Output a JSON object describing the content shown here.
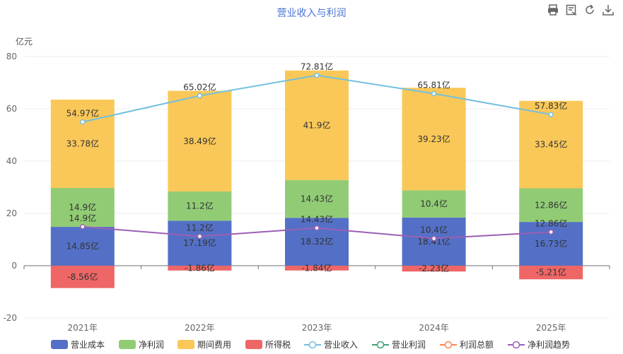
{
  "toolbox": {
    "icons": [
      "print-icon",
      "data-view-icon",
      "restore-icon",
      "download-icon"
    ]
  },
  "chart_data": {
    "type": "bar",
    "title": "营业收入与利润",
    "ylabel": "亿元",
    "ylim": [
      -20,
      80
    ],
    "yticks": [
      -20,
      0,
      20,
      40,
      60,
      80
    ],
    "categories": [
      "2021年",
      "2022年",
      "2023年",
      "2024年",
      "2025年"
    ],
    "stacked_series": [
      {
        "name": "营业成本",
        "color": "#5470c6",
        "values": [
          14.85,
          17.19,
          18.32,
          18.41,
          16.73
        ],
        "labels": [
          "14.85亿",
          "17.19亿",
          "18.32亿",
          "18.41亿",
          "16.73亿"
        ]
      },
      {
        "name": "净利润",
        "color": "#91cc75",
        "values": [
          14.9,
          11.2,
          14.43,
          10.4,
          12.86
        ],
        "labels": [
          "14.9亿",
          "11.2亿",
          "14.43亿",
          "10.4亿",
          "12.86亿"
        ]
      },
      {
        "name": "期间费用",
        "color": "#fac858",
        "values": [
          33.78,
          38.49,
          41.9,
          39.23,
          33.45
        ],
        "labels": [
          "33.78亿",
          "38.49亿",
          "41.9亿",
          "39.23亿",
          "33.45亿"
        ]
      },
      {
        "name": "所得税",
        "color": "#ee6666",
        "values": [
          -8.56,
          -1.86,
          -1.84,
          -2.23,
          -5.21
        ],
        "labels": [
          "-8.56亿",
          "-1.86亿",
          "-1.84亿",
          "-2.23亿",
          "-5.21亿"
        ]
      }
    ],
    "line_series": [
      {
        "name": "营业收入",
        "color": "#73c0de",
        "values": [
          54.97,
          65.02,
          72.81,
          65.81,
          57.83
        ],
        "labels": [
          "54.97亿",
          "65.02亿",
          "72.81亿",
          "65.81亿",
          "57.83亿"
        ]
      },
      {
        "name": "营业利润",
        "color": "#3ba272",
        "values": [
          null,
          null,
          null,
          null,
          null
        ],
        "labels": []
      },
      {
        "name": "利润总额",
        "color": "#fc8452",
        "values": [
          null,
          null,
          null,
          null,
          null
        ],
        "labels": []
      },
      {
        "name": "净利润趋势",
        "color": "#9a60b4",
        "values": [
          14.9,
          11.2,
          14.43,
          10.4,
          12.86
        ],
        "labels": [
          "14.9亿",
          "11.2亿",
          "14.43亿",
          "10.4亿",
          "12.86亿"
        ]
      }
    ],
    "grid": true,
    "legend_position": "bottom"
  }
}
